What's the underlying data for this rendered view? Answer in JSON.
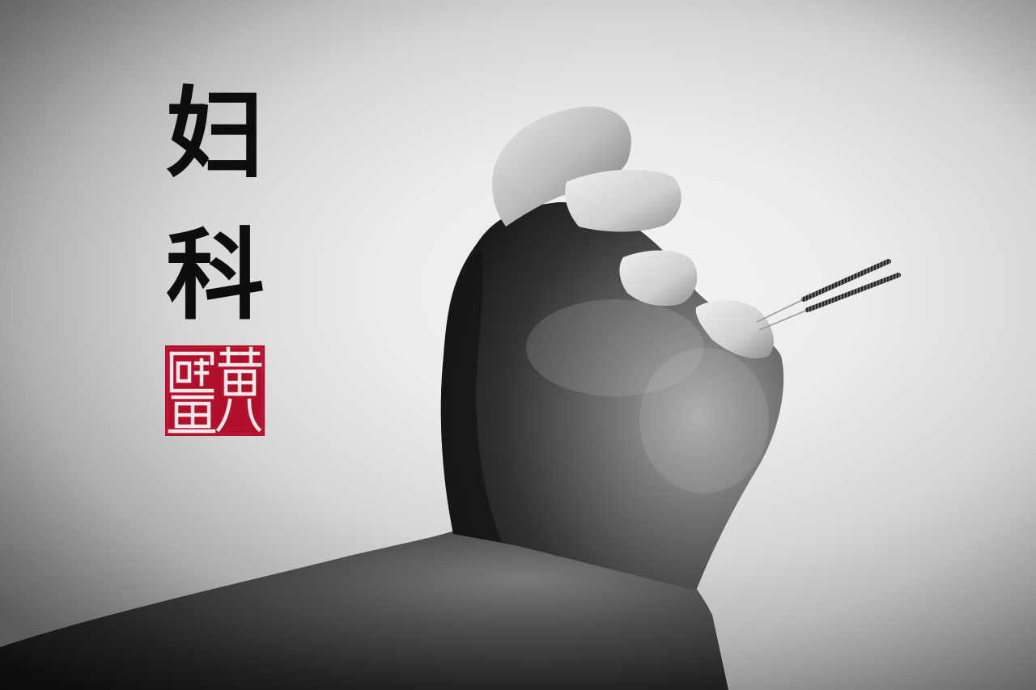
{
  "title_chars": [
    "妇",
    "科"
  ],
  "seal_text": "黄医",
  "colors": {
    "seal_red": "#b0102a",
    "ink": "#0d0d0d",
    "background": "#ececec"
  }
}
